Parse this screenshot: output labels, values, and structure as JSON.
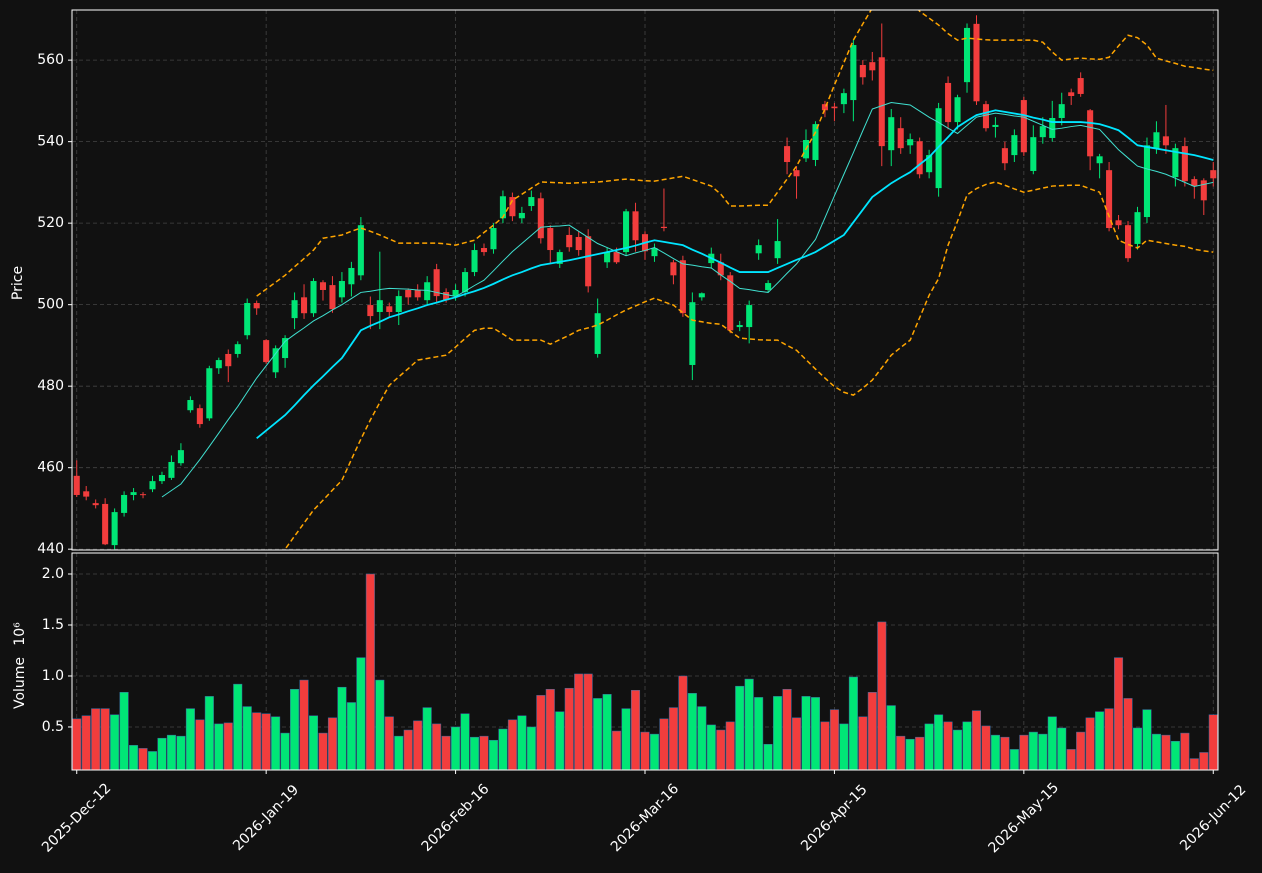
{
  "chart_data": {
    "type": "candlestick",
    "categories": [
      "2025-Dec-12",
      null,
      null,
      null,
      null,
      null,
      null,
      null,
      null,
      null,
      null,
      null,
      null,
      null,
      null,
      null,
      null,
      null,
      null,
      null,
      "2026-Jan-19",
      null,
      null,
      null,
      null,
      null,
      null,
      null,
      null,
      null,
      null,
      null,
      null,
      null,
      null,
      null,
      null,
      null,
      null,
      null,
      "2026-Feb-16",
      null,
      null,
      null,
      null,
      null,
      null,
      null,
      null,
      null,
      null,
      null,
      null,
      null,
      null,
      null,
      null,
      null,
      null,
      null,
      "2026-Mar-16",
      null,
      null,
      null,
      null,
      null,
      null,
      null,
      null,
      null,
      null,
      null,
      null,
      null,
      null,
      null,
      null,
      null,
      null,
      null,
      "2026-Apr-15",
      null,
      null,
      null,
      null,
      null,
      null,
      null,
      null,
      null,
      null,
      null,
      null,
      null,
      null,
      null,
      null,
      null,
      null,
      null,
      "2026-May-15",
      null,
      null,
      null,
      null,
      null,
      null,
      null,
      null,
      null,
      null,
      null,
      null,
      null,
      null,
      null,
      null,
      null,
      null,
      null,
      "2026-Jun-12"
    ],
    "open": [
      458.0,
      454.2,
      451.3,
      451.1,
      441.0,
      448.9,
      453.3,
      453.5,
      454.7,
      456.7,
      457.5,
      461.1,
      474.1,
      474.6,
      472.1,
      484.4,
      487.9,
      487.9,
      492.5,
      500.4,
      491.3,
      483.4,
      486.9,
      496.7,
      501.8,
      497.9,
      505.5,
      504.8,
      501.8,
      505.0,
      507.2,
      499.9,
      498.2,
      499.6,
      498.2,
      503.6,
      503.6,
      501.1,
      508.7,
      503.1,
      502.1,
      503.1,
      508.0,
      513.9,
      513.6,
      521.2,
      526.4,
      521.2,
      524.2,
      526.1,
      518.8,
      510.0,
      517.1,
      516.6,
      516.8,
      487.9,
      510.4,
      512.9,
      512.9,
      522.9,
      517.3,
      511.9,
      519.1,
      510.4,
      510.9,
      485.2,
      501.8,
      510.2,
      510.4,
      507.2,
      494.5,
      494.5,
      512.6,
      503.6,
      511.4,
      538.9,
      533.0,
      535.9,
      535.5,
      549.2,
      548.6,
      549.2,
      550.2,
      558.8,
      559.5,
      560.7,
      537.9,
      543.3,
      539.1,
      540.1,
      532.5,
      528.6,
      554.4,
      544.8,
      554.6,
      568.9,
      549.2,
      543.6,
      538.4,
      536.7,
      550.2,
      532.8,
      541.1,
      540.9,
      545.8,
      552.1,
      555.6,
      547.7,
      534.7,
      533.0,
      520.7,
      519.5,
      514.9,
      521.5,
      538.4,
      541.3,
      531.3,
      538.9,
      530.8,
      530.5,
      533.0
    ],
    "high": [
      461.8,
      455.5,
      452.2,
      452.5,
      450.0,
      454.2,
      455.0,
      454.0,
      458.0,
      459.0,
      463.0,
      466.0,
      477.5,
      475.5,
      485.0,
      487.0,
      489.0,
      491.0,
      501.5,
      501.0,
      491.5,
      490.0,
      492.5,
      503.0,
      505.0,
      506.5,
      506.0,
      507.0,
      508.0,
      510.5,
      521.5,
      502.0,
      513.0,
      500.5,
      503.5,
      504.0,
      505.0,
      507.0,
      510.0,
      504.0,
      505.0,
      509.0,
      515.0,
      515.0,
      520.0,
      528.0,
      527.5,
      524.0,
      528.0,
      527.5,
      519.5,
      513.5,
      519.0,
      518.0,
      518.5,
      501.5,
      514.0,
      514.0,
      523.5,
      525.0,
      518.0,
      515.0,
      528.5,
      511.0,
      512.0,
      503.0,
      503.0,
      514.0,
      512.5,
      508.0,
      496.0,
      501.0,
      516.0,
      506.0,
      521.0,
      541.0,
      534.0,
      543.0,
      545.0,
      550.0,
      549.5,
      553.0,
      565.0,
      560.0,
      562.0,
      569.0,
      548.0,
      546.0,
      542.0,
      541.0,
      538.0,
      549.5,
      556.0,
      551.5,
      569.0,
      571.0,
      550.0,
      546.0,
      540.0,
      543.0,
      551.0,
      544.0,
      546.0,
      550.0,
      552.0,
      553.0,
      557.0,
      548.0,
      537.0,
      535.0,
      522.0,
      520.5,
      524.0,
      541.0,
      545.0,
      549.0,
      539.5,
      541.0,
      531.5,
      531.0,
      535.0
    ],
    "low": [
      452.8,
      452.0,
      450.0,
      441.0,
      440.0,
      448.0,
      452.0,
      452.5,
      454.0,
      456.0,
      457.0,
      460.5,
      473.5,
      469.8,
      471.5,
      483.0,
      481.0,
      487.0,
      491.5,
      497.5,
      485.5,
      482.0,
      484.5,
      494.0,
      496.5,
      497.0,
      501.0,
      498.0,
      500.5,
      502.0,
      506.0,
      494.0,
      494.0,
      497.0,
      495.0,
      500.0,
      501.0,
      500.0,
      500.5,
      500.5,
      501.0,
      502.0,
      507.0,
      512.0,
      512.5,
      520.0,
      520.5,
      520.0,
      523.0,
      515.0,
      510.0,
      509.0,
      513.0,
      512.0,
      503.0,
      487.0,
      509.0,
      510.0,
      512.0,
      513.0,
      511.0,
      510.5,
      518.0,
      505.0,
      497.0,
      481.5,
      501.0,
      509.0,
      506.0,
      493.0,
      493.5,
      490.5,
      511.0,
      503.0,
      510.0,
      532.0,
      526.0,
      535.0,
      534.0,
      546.0,
      545.0,
      547.0,
      545.0,
      554.0,
      555.0,
      534.0,
      534.0,
      537.0,
      537.0,
      531.0,
      531.0,
      526.5,
      543.0,
      543.0,
      552.0,
      549.0,
      542.5,
      541.0,
      533.0,
      535.0,
      536.5,
      532.0,
      539.5,
      540.0,
      544.0,
      549.0,
      551.0,
      533.0,
      531.0,
      518.0,
      518.5,
      510.5,
      513.5,
      520.0,
      537.0,
      537.0,
      529.0,
      529.0,
      526.0,
      522.0,
      529.0
    ],
    "close": [
      453.3,
      452.9,
      450.8,
      441.2,
      449.1,
      453.3,
      454.0,
      453.4,
      456.7,
      458.2,
      461.4,
      464.3,
      476.6,
      470.7,
      484.4,
      486.4,
      484.9,
      490.3,
      500.4,
      499.1,
      485.9,
      489.3,
      491.8,
      501.1,
      497.9,
      505.8,
      503.6,
      498.9,
      505.8,
      509.0,
      519.5,
      497.2,
      501.1,
      498.2,
      502.1,
      501.8,
      501.8,
      505.5,
      502.1,
      501.1,
      503.6,
      508.0,
      513.4,
      512.9,
      518.8,
      526.6,
      521.7,
      522.5,
      526.4,
      516.3,
      513.4,
      512.9,
      514.1,
      513.4,
      504.5,
      497.9,
      512.9,
      510.4,
      522.9,
      515.8,
      513.1,
      513.9,
      518.8,
      507.2,
      497.9,
      500.6,
      502.8,
      512.5,
      507.2,
      493.7,
      495.0,
      499.9,
      514.6,
      505.3,
      515.6,
      535.0,
      531.5,
      540.4,
      544.3,
      547.7,
      548.2,
      551.9,
      563.7,
      555.8,
      557.5,
      538.9,
      546.0,
      538.4,
      540.6,
      532.0,
      536.7,
      548.2,
      544.8,
      550.9,
      567.9,
      549.9,
      543.3,
      544.1,
      534.7,
      541.6,
      537.4,
      541.1,
      543.8,
      545.8,
      549.2,
      551.2,
      551.7,
      536.4,
      536.4,
      518.8,
      519.5,
      511.4,
      522.7,
      539.1,
      542.3,
      539.1,
      538.4,
      530.3,
      529.1,
      525.6,
      531.0
    ],
    "up_color": "#00e676",
    "down_color": "#f23d3d",
    "series": [
      {
        "color": "#40e0d0",
        "linewidth": 1,
        "dashed": false,
        "values": [
          null,
          null,
          null,
          null,
          null,
          null,
          null,
          null,
          null,
          452.8,
          454.4,
          456,
          459,
          462,
          465.2,
          468.5,
          471.8,
          475,
          478.5,
          482,
          485,
          488,
          491,
          492.7,
          494.3,
          496,
          497.3,
          498.7,
          500,
          501.5,
          503,
          503.3,
          503.7,
          504,
          503.9,
          503.8,
          503.6,
          503.5,
          503,
          502.5,
          502,
          503.3,
          504.7,
          506,
          508.3,
          510.7,
          513,
          515,
          517,
          519,
          519.2,
          519.3,
          519.5,
          518,
          516.5,
          515,
          514,
          513,
          512,
          512.7,
          513.3,
          514,
          512.7,
          511.3,
          510,
          509.7,
          509.3,
          509,
          507.3,
          505.7,
          504,
          503.7,
          503.3,
          503,
          505.3,
          507.7,
          510,
          513,
          516,
          521.3,
          526.7,
          532,
          537.3,
          542.7,
          548,
          548.8,
          549.6,
          549.3,
          549,
          547.5,
          546,
          544.7,
          543.3,
          542,
          544,
          546,
          546.5,
          547,
          546.7,
          546.3,
          546,
          545,
          544,
          543,
          543.3,
          543.7,
          544,
          543.5,
          543,
          540.5,
          538,
          536,
          534,
          533.3,
          532.7,
          532,
          531,
          530,
          529,
          529.5,
          530
        ]
      },
      {
        "color": "#00e5ff",
        "linewidth": 1.8,
        "dashed": false,
        "values": [
          null,
          null,
          null,
          null,
          null,
          null,
          null,
          null,
          null,
          null,
          null,
          null,
          null,
          null,
          null,
          null,
          null,
          null,
          null,
          467.2,
          469.1,
          471,
          472.9,
          475.3,
          477.8,
          480.2,
          482.4,
          484.7,
          486.9,
          490.3,
          493.7,
          494.8,
          495.8,
          496.9,
          497.6,
          498.4,
          499.1,
          499.9,
          500.5,
          501.2,
          501.8,
          502.6,
          503.3,
          504.1,
          505.1,
          506.2,
          507.2,
          508,
          508.9,
          509.7,
          510.1,
          510.5,
          510.9,
          511.4,
          511.9,
          512.4,
          512.9,
          513.4,
          513.9,
          514.5,
          515.2,
          515.8,
          515.4,
          515,
          514.6,
          513.5,
          512.5,
          511.4,
          510.3,
          509.1,
          508,
          508,
          508,
          508,
          509,
          510,
          511,
          511.9,
          512.9,
          514.3,
          515.7,
          517.1,
          520.2,
          523.3,
          526.4,
          528.1,
          529.8,
          531.2,
          532.5,
          534.4,
          536.2,
          538.7,
          541.1,
          543.6,
          545.1,
          546.5,
          547.1,
          547.7,
          547.3,
          546.9,
          546.5,
          545.9,
          545.4,
          544.8,
          544.8,
          544.8,
          544.8,
          544.6,
          544.3,
          543.6,
          542.8,
          541,
          539.1,
          538.7,
          538.3,
          537.9,
          537.5,
          537.1,
          536.7,
          536.1,
          535.5
        ]
      },
      {
        "color": "#ffa500",
        "linewidth": 1.5,
        "dashed": true,
        "values": [
          null,
          null,
          null,
          null,
          null,
          null,
          null,
          null,
          null,
          null,
          null,
          null,
          null,
          null,
          null,
          null,
          null,
          null,
          null,
          502.1,
          503.8,
          505.5,
          507.2,
          509.3,
          511.3,
          513.4,
          516.3,
          516.7,
          517.1,
          518,
          518.8,
          518,
          517.1,
          516.1,
          515.1,
          515.1,
          515.1,
          515.1,
          515.1,
          514.9,
          514.6,
          515.2,
          515.8,
          517.7,
          519.5,
          521.5,
          525.6,
          527.1,
          528.6,
          530.1,
          530,
          529.9,
          529.8,
          529.9,
          530,
          530.1,
          530.3,
          530.6,
          530.8,
          530.6,
          530.4,
          530.3,
          530.7,
          531.1,
          531.5,
          530.7,
          529.9,
          529.1,
          527.1,
          524.2,
          524.2,
          524.3,
          524.4,
          524.4,
          527.6,
          530.8,
          534,
          538.2,
          542.3,
          548.1,
          553.9,
          559.4,
          564.9,
          568.9,
          572.8,
          575,
          577,
          577,
          575,
          572,
          570.3,
          568.6,
          566.5,
          564.9,
          565.4,
          565.2,
          565,
          564.9,
          564.9,
          564.9,
          564.9,
          564.9,
          564.4,
          562,
          560,
          560.3,
          560.5,
          560.3,
          560.2,
          560.7,
          563.5,
          566.1,
          565.5,
          563.7,
          560.5,
          559.8,
          559.2,
          558.5,
          558.2,
          557.8,
          557.5
        ]
      },
      {
        "color": "#ffa500",
        "linewidth": 1.5,
        "dashed": true,
        "values": [
          null,
          null,
          null,
          null,
          null,
          null,
          null,
          null,
          null,
          null,
          null,
          null,
          null,
          null,
          null,
          null,
          null,
          null,
          null,
          431,
          434,
          437,
          440,
          443.2,
          446.4,
          449.6,
          452,
          454.5,
          456.9,
          462,
          467,
          471.7,
          476,
          480.2,
          482.3,
          484.3,
          486.4,
          486.8,
          487.2,
          487.6,
          489.6,
          491.7,
          493.7,
          494.2,
          494.2,
          492.8,
          491.3,
          491.3,
          491.3,
          491.3,
          490.3,
          491.4,
          492.5,
          493.7,
          494.3,
          495,
          496.2,
          497.5,
          498.7,
          499.7,
          500.7,
          501.6,
          500.7,
          499.9,
          498,
          496.2,
          495.8,
          495.4,
          495.2,
          493.5,
          491.8,
          491.6,
          491.4,
          491.3,
          491.3,
          490,
          488.8,
          486.5,
          484.2,
          482,
          479.9,
          478.5,
          477.8,
          479.5,
          481.5,
          484.5,
          487.6,
          489.5,
          491.3,
          496.8,
          502.3,
          506.4,
          514.6,
          520.5,
          526.9,
          528.5,
          529.5,
          530.1,
          529.3,
          528.4,
          527.6,
          528.1,
          528.6,
          529.1,
          529.2,
          529.3,
          529.3,
          528.4,
          527.6,
          521.7,
          515.8,
          514.8,
          513.9,
          515.8,
          515.4,
          515,
          514.6,
          514.3,
          513.6,
          513.2,
          512.9
        ]
      }
    ],
    "ylabel": "Price",
    "ylim": [
      439.8,
      572.3
    ],
    "yticks": [
      440,
      460,
      480,
      500,
      520,
      540,
      560
    ],
    "grid": true,
    "volume": {
      "ylabel": "Volume",
      "offset_label": "10⁶",
      "values": [
        0.58,
        0.61,
        0.68,
        0.68,
        0.62,
        0.84,
        0.32,
        0.29,
        0.26,
        0.39,
        0.42,
        0.41,
        0.68,
        0.57,
        0.8,
        0.53,
        0.54,
        0.92,
        0.7,
        0.64,
        0.63,
        0.6,
        0.44,
        0.87,
        0.96,
        0.61,
        0.44,
        0.59,
        0.89,
        0.74,
        1.18,
        2.0,
        0.96,
        0.6,
        0.41,
        0.47,
        0.56,
        0.69,
        0.53,
        0.41,
        0.5,
        0.63,
        0.4,
        0.41,
        0.37,
        0.48,
        0.57,
        0.61,
        0.5,
        0.81,
        0.87,
        0.65,
        0.88,
        1.02,
        1.02,
        0.78,
        0.82,
        0.46,
        0.68,
        0.86,
        0.45,
        0.43,
        0.58,
        0.69,
        1.0,
        0.83,
        0.7,
        0.52,
        0.47,
        0.55,
        0.9,
        0.97,
        0.79,
        0.33,
        0.8,
        0.87,
        0.59,
        0.8,
        0.79,
        0.55,
        0.67,
        0.53,
        0.99,
        0.6,
        0.84,
        1.53,
        0.71,
        0.41,
        0.38,
        0.4,
        0.53,
        0.62,
        0.55,
        0.47,
        0.55,
        0.66,
        0.51,
        0.42,
        0.4,
        0.28,
        0.42,
        0.45,
        0.43,
        0.6,
        0.49,
        0.28,
        0.45,
        0.59,
        0.65,
        0.68,
        1.18,
        0.78,
        0.49,
        0.67,
        0.43,
        0.42,
        0.36,
        0.44,
        0.19,
        0.25,
        0.62
      ],
      "ylim": [
        0.078,
        2.206
      ],
      "yticks": [
        0.5,
        {
          "value": 1,
          "label": "1.0"
        },
        1.5,
        {
          "value": 2,
          "label": "2.0"
        }
      ]
    }
  }
}
